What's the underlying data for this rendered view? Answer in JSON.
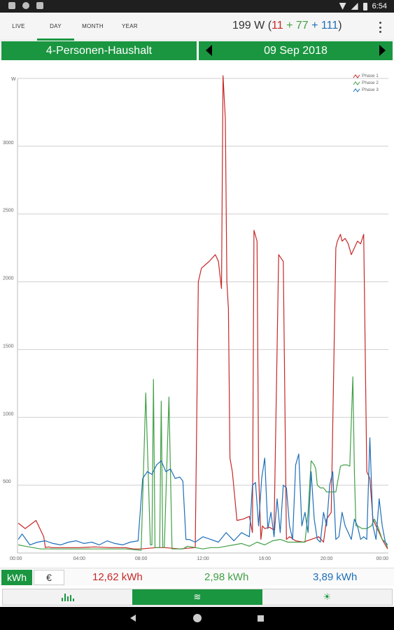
{
  "status": {
    "time": "6:54"
  },
  "tabs": [
    {
      "label": "LIVE",
      "active": false
    },
    {
      "label": "DAY",
      "active": true
    },
    {
      "label": "MONTH",
      "active": false
    },
    {
      "label": "YEAR",
      "active": false
    }
  ],
  "power": {
    "total": "199 W (",
    "p1": "11",
    "plus1": " + ",
    "p2": "77",
    "plus2": " + ",
    "p3": "111",
    "close": ")"
  },
  "profile": "4-Personen-Haushalt",
  "date": "09 Sep 2018",
  "summary": {
    "unit_kwh": "kWh",
    "unit_eur": "€",
    "phase1": "12,62 kWh",
    "phase2": "2,98 kWh",
    "phase3": "3,89 kWh"
  },
  "colors": {
    "brand": "#1a9640",
    "phase1": "#c62828",
    "phase2": "#43a047",
    "phase3": "#1e6fb8"
  },
  "icons": {
    "chart_tab": "bar-chart-icon",
    "line_tab": "wave-icon",
    "sun_tab": "sun-icon"
  },
  "chart_data": {
    "type": "line",
    "ylabel": "W",
    "ylim": [
      0,
      3500
    ],
    "yticks": [
      "500",
      "1000",
      "1500",
      "2000",
      "2500",
      "3000"
    ],
    "xticks": [
      "00:00",
      "04:00",
      "08:00",
      "12:00",
      "16:00",
      "20:00",
      "00:00"
    ],
    "x_hours": [
      0,
      4,
      8,
      12,
      16,
      20,
      24
    ],
    "grid": true,
    "legend_position": "top-right",
    "series": [
      {
        "name": "Phase 1",
        "color": "#c62828",
        "x": [
          0.05,
          0.5,
          1.2,
          1.7,
          1.8,
          2.0,
          2.2,
          2.5,
          3.0,
          4.0,
          5.0,
          6.0,
          7.0,
          7.5,
          8.0,
          8.5,
          9.0,
          9.5,
          10.0,
          10.5,
          11.0,
          11.5,
          11.7,
          11.8,
          11.9,
          12.4,
          12.8,
          13.0,
          13.2,
          13.3,
          13.45,
          13.55,
          13.65,
          13.75,
          13.9,
          14.2,
          14.6,
          15.0,
          15.2,
          15.3,
          15.5,
          15.6,
          15.75,
          15.85,
          16.0,
          16.3,
          16.6,
          16.9,
          17.2,
          17.4,
          17.6,
          17.75,
          17.85,
          18.0,
          18.5,
          19.0,
          19.5,
          19.8,
          20.0,
          20.3,
          20.6,
          20.7,
          20.9,
          21.0,
          21.2,
          21.4,
          21.6,
          21.8,
          22.0,
          22.2,
          22.4,
          22.6,
          22.8,
          23.0,
          23.2,
          23.4,
          23.6,
          23.8,
          23.95
        ],
        "values": [
          220,
          180,
          240,
          120,
          40,
          45,
          40,
          40,
          40,
          40,
          45,
          40,
          40,
          30,
          30,
          35,
          40,
          40,
          35,
          30,
          35,
          40,
          2000,
          2050,
          2100,
          2150,
          2200,
          2150,
          1950,
          3520,
          3200,
          2000,
          1800,
          700,
          600,
          240,
          250,
          270,
          150,
          2380,
          2300,
          600,
          100,
          200,
          180,
          190,
          170,
          2200,
          2150,
          100,
          120,
          110,
          100,
          90,
          80,
          100,
          120,
          80,
          250,
          300,
          2250,
          2300,
          2350,
          2300,
          2320,
          2280,
          2200,
          2250,
          2300,
          2280,
          2350,
          600,
          550,
          250,
          200,
          150,
          100,
          60,
          30
        ]
      },
      {
        "name": "Phase 2",
        "color": "#43a047",
        "x": [
          0.05,
          0.5,
          1.0,
          1.5,
          2.0,
          3.0,
          4.0,
          5.0,
          6.0,
          7.0,
          8.0,
          8.3,
          8.6,
          8.7,
          8.8,
          8.9,
          9.2,
          9.3,
          9.4,
          9.5,
          9.8,
          10.0,
          10.5,
          10.6,
          10.7,
          11.0,
          12.0,
          12.5,
          13.0,
          13.5,
          14.0,
          14.5,
          15.0,
          15.5,
          16.0,
          16.5,
          17.0,
          17.5,
          18.0,
          18.3,
          18.6,
          18.8,
          19.0,
          19.2,
          19.3,
          19.4,
          19.6,
          19.8,
          20.0,
          20.3,
          20.6,
          20.9,
          21.1,
          21.3,
          21.5,
          21.7,
          21.8,
          21.9,
          22.0,
          22.3,
          22.6,
          22.9,
          23.1,
          23.3,
          23.6,
          23.8,
          23.95
        ],
        "values": [
          60,
          50,
          40,
          30,
          30,
          30,
          30,
          30,
          30,
          30,
          20,
          1180,
          60,
          60,
          1280,
          40,
          40,
          1120,
          40,
          40,
          1150,
          30,
          30,
          30,
          30,
          50,
          30,
          40,
          40,
          50,
          60,
          70,
          50,
          80,
          60,
          90,
          100,
          80,
          80,
          80,
          80,
          300,
          680,
          650,
          620,
          500,
          480,
          480,
          450,
          450,
          450,
          640,
          650,
          650,
          640,
          1300,
          600,
          200,
          200,
          180,
          180,
          200,
          250,
          200,
          100,
          80,
          40
        ]
      },
      {
        "name": "Phase 3",
        "color": "#1e6fb8",
        "x": [
          0.05,
          0.3,
          0.8,
          1.3,
          1.8,
          2.3,
          2.8,
          3.3,
          3.8,
          4.3,
          4.8,
          5.3,
          5.8,
          6.3,
          6.8,
          7.3,
          7.8,
          8.1,
          8.4,
          8.7,
          9.0,
          9.3,
          9.6,
          9.9,
          10.2,
          10.5,
          10.7,
          10.9,
          11.1,
          11.5,
          12.0,
          12.5,
          13.0,
          13.5,
          14.0,
          14.5,
          15.0,
          15.2,
          15.4,
          15.6,
          15.8,
          16.0,
          16.2,
          16.4,
          16.6,
          16.8,
          17.0,
          17.2,
          17.4,
          17.6,
          17.8,
          18.0,
          18.2,
          18.4,
          18.6,
          18.8,
          19.0,
          19.2,
          19.4,
          19.6,
          19.8,
          20.0,
          20.2,
          20.4,
          20.6,
          20.8,
          21.0,
          21.2,
          21.4,
          21.6,
          21.8,
          22.0,
          22.2,
          22.4,
          22.6,
          22.8,
          23.0,
          23.2,
          23.4,
          23.6,
          23.8,
          23.95
        ],
        "values": [
          100,
          140,
          60,
          80,
          90,
          70,
          60,
          80,
          90,
          70,
          80,
          60,
          90,
          70,
          60,
          80,
          90,
          550,
          600,
          580,
          650,
          680,
          600,
          620,
          550,
          560,
          530,
          100,
          100,
          80,
          120,
          100,
          80,
          150,
          90,
          150,
          120,
          500,
          520,
          200,
          550,
          700,
          180,
          300,
          120,
          400,
          150,
          500,
          480,
          200,
          100,
          650,
          730,
          200,
          300,
          150,
          600,
          250,
          100,
          80,
          300,
          200,
          500,
          600,
          100,
          120,
          300,
          200,
          150,
          100,
          250,
          200,
          100,
          120,
          100,
          850,
          200,
          100,
          400,
          200,
          80,
          60
        ]
      }
    ]
  }
}
